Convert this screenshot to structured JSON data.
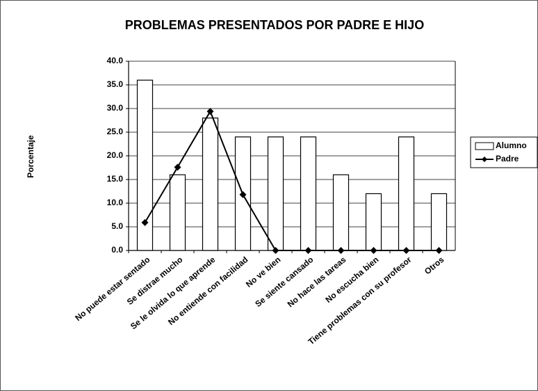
{
  "chart_data": {
    "type": "bar",
    "title": "PROBLEMAS PRESENTADOS POR  PADRE E HIJO",
    "ylabel": "Porcentaje",
    "categories": [
      "No puede estar sentado",
      "Se distrae mucho",
      "Se le olvida lo que aprende",
      "No entiende con facilidad",
      "No ve bien",
      "Se siente cansado",
      "No hace las tareas",
      "No escucha bien",
      "Tiene problemas con su profesor",
      "Otros"
    ],
    "series": [
      {
        "name": "Alumno",
        "type": "bar",
        "color": "#ffffff",
        "values": [
          36,
          16,
          28,
          24,
          24,
          24,
          16,
          12,
          24,
          12
        ]
      },
      {
        "name": "Padre",
        "type": "line",
        "color": "#000000",
        "values": [
          5.9,
          17.6,
          29.4,
          11.8,
          0,
          0,
          0,
          0,
          0,
          0
        ]
      }
    ],
    "ylim": [
      0,
      40
    ],
    "yticks": [
      {
        "value": 0,
        "label": "0.0"
      },
      {
        "value": 5,
        "label": "5.0"
      },
      {
        "value": 10,
        "label": "10.0"
      },
      {
        "value": 15,
        "label": "15.0"
      },
      {
        "value": 20,
        "label": "20.0"
      },
      {
        "value": 25,
        "label": "25.0"
      },
      {
        "value": 30,
        "label": "30.0"
      },
      {
        "value": 35,
        "label": "35.0"
      },
      {
        "value": 40,
        "label": "40.0"
      }
    ],
    "grid": true,
    "legend": "right"
  }
}
